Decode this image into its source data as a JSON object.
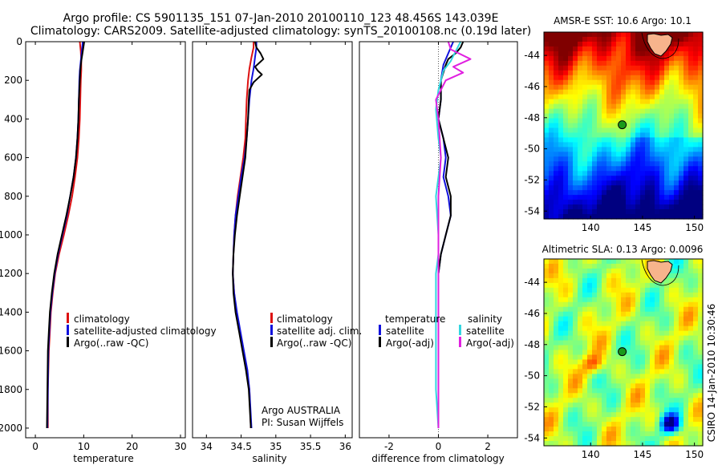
{
  "title": {
    "line1": "Argo profile: CS 5901135_151 07-Jan-2010 20100110_123 48.456S 143.039E",
    "line2": "Climatology: CARS2009. Satellite-adjusted climatology: synTS_20100108.nc (0.19d later)"
  },
  "colors": {
    "climatology": "#dd1111",
    "satellite": "#1111dd",
    "argo": "#000000",
    "satellite_salinity": "#33d6e0",
    "argo_adj_salinity": "#e020e0"
  },
  "chart_data": [
    {
      "type": "line",
      "name": "temperature-profile",
      "xlabel": "temperature",
      "ylabel": "",
      "xlim": [
        -2,
        31
      ],
      "ylim": [
        2050,
        0
      ],
      "xticks": [
        "0",
        "10",
        "20",
        "30"
      ],
      "xtick_values": [
        0,
        10,
        20,
        30
      ],
      "yticks": [
        "0",
        "200",
        "400",
        "600",
        "800",
        "1000",
        "1200",
        "1400",
        "1600",
        "1800",
        "2000"
      ],
      "ytick_values": [
        0,
        200,
        400,
        600,
        800,
        1000,
        1200,
        1400,
        1600,
        1800,
        2000
      ],
      "legend": [
        "climatology",
        "satellite-adjusted climatology",
        "Argo(..raw -QC)"
      ],
      "legend_colors": [
        "#dd1111",
        "#1111dd",
        "#000000"
      ],
      "series": [
        {
          "name": "climatology",
          "color": "#dd1111",
          "x": [
            9.2,
            9.4,
            9.5,
            9.5,
            9.4,
            9.3,
            9.2,
            9.0,
            8.7,
            8.2,
            7.6,
            6.8,
            5.9,
            4.9,
            4.1,
            3.6,
            3.2,
            3.0,
            2.8,
            2.6,
            2.6
          ],
          "y": [
            0,
            50,
            100,
            150,
            200,
            300,
            400,
            500,
            600,
            700,
            800,
            900,
            1000,
            1100,
            1200,
            1300,
            1400,
            1500,
            1600,
            1800,
            2000
          ]
        },
        {
          "name": "satellite-adjusted climatology",
          "color": "#1111dd",
          "x": [
            9.8,
            9.6,
            9.4,
            9.2,
            9.1,
            9.0,
            8.9,
            8.7,
            8.4,
            7.9,
            7.2,
            6.5,
            5.6,
            4.7,
            4.0,
            3.5,
            3.1,
            2.9,
            2.7,
            2.6,
            2.5
          ],
          "y": [
            0,
            50,
            100,
            150,
            200,
            300,
            400,
            500,
            600,
            700,
            800,
            900,
            1000,
            1100,
            1200,
            1300,
            1400,
            1500,
            1600,
            1800,
            2000
          ]
        },
        {
          "name": "Argo(..raw -QC)",
          "color": "#000000",
          "x": [
            10.1,
            9.8,
            9.5,
            9.3,
            9.2,
            9.0,
            8.9,
            8.7,
            8.4,
            7.9,
            7.2,
            6.4,
            5.5,
            4.6,
            3.9,
            3.4,
            3.0,
            2.8,
            2.6,
            2.5,
            2.4
          ],
          "y": [
            0,
            50,
            100,
            150,
            200,
            300,
            400,
            500,
            600,
            700,
            800,
            900,
            1000,
            1100,
            1200,
            1300,
            1400,
            1500,
            1600,
            1800,
            2000
          ]
        }
      ]
    },
    {
      "type": "line",
      "name": "salinity-profile",
      "xlabel": "salinity",
      "xlim": [
        33.8,
        36.1
      ],
      "ylim": [
        2050,
        0
      ],
      "xticks": [
        "34",
        "34.5",
        "35",
        "35.5",
        "36"
      ],
      "xtick_values": [
        34,
        34.5,
        35,
        35.5,
        36
      ],
      "legend": [
        "climatology",
        "satellite adj. clim.",
        "Argo(..raw -QC)"
      ],
      "legend_colors": [
        "#dd1111",
        "#1111dd",
        "#000000"
      ],
      "annotation": [
        "Argo AUSTRALIA",
        "PI: Susan Wijffels"
      ],
      "series": [
        {
          "name": "climatology",
          "color": "#dd1111",
          "x": [
            34.68,
            34.68,
            34.65,
            34.62,
            34.6,
            34.58,
            34.57,
            34.56,
            34.53,
            34.49,
            34.45,
            34.42,
            34.4,
            34.39,
            34.38,
            34.4,
            34.43,
            34.48,
            34.53,
            34.58,
            34.62,
            34.64
          ],
          "y": [
            0,
            30,
            80,
            140,
            200,
            300,
            400,
            500,
            600,
            700,
            800,
            900,
            1000,
            1100,
            1200,
            1300,
            1400,
            1500,
            1600,
            1700,
            1800,
            2000
          ]
        },
        {
          "name": "satellite adj. clim.",
          "color": "#1111dd",
          "x": [
            34.72,
            34.72,
            34.7,
            34.68,
            34.65,
            34.62,
            34.6,
            34.58,
            34.55,
            34.5,
            34.46,
            34.42,
            34.4,
            34.39,
            34.38,
            34.4,
            34.44,
            34.49,
            34.54,
            34.59,
            34.62,
            34.65
          ],
          "y": [
            0,
            30,
            80,
            140,
            200,
            300,
            400,
            500,
            600,
            700,
            800,
            900,
            1000,
            1100,
            1200,
            1300,
            1400,
            1500,
            1600,
            1700,
            1800,
            2000
          ]
        },
        {
          "name": "Argo(..raw -QC)",
          "color": "#000000",
          "x": [
            34.7,
            34.72,
            34.78,
            34.82,
            34.76,
            34.7,
            34.74,
            34.8,
            34.74,
            34.68,
            34.62,
            34.61,
            34.6,
            34.58,
            34.56,
            34.52,
            34.48,
            34.44,
            34.41,
            34.39,
            34.38,
            34.39,
            34.42,
            34.47,
            34.52,
            34.57,
            34.61,
            34.64
          ],
          "y": [
            0,
            30,
            60,
            90,
            110,
            130,
            150,
            170,
            190,
            210,
            250,
            300,
            400,
            500,
            600,
            700,
            800,
            900,
            1000,
            1100,
            1200,
            1300,
            1400,
            1500,
            1600,
            1700,
            1800,
            2000
          ]
        }
      ]
    },
    {
      "type": "line",
      "name": "difference-profile",
      "xlabel": "difference from climatology",
      "xlim": [
        -3.2,
        3.2
      ],
      "ylim": [
        2050,
        0
      ],
      "xticks": [
        "-2",
        "0",
        "2"
      ],
      "xtick_values": [
        -2,
        0,
        2
      ],
      "legend_left_title": "temperature",
      "legend_right_title": "salinity",
      "legend_left": [
        "satellite",
        "Argo(-adj)"
      ],
      "legend_left_colors": [
        "#1111dd",
        "#000000"
      ],
      "legend_right": [
        "satellite",
        "Argo(-adj)"
      ],
      "legend_right_colors": [
        "#33d6e0",
        "#e020e0"
      ],
      "series": [
        {
          "name": "temperature satellite",
          "color": "#1111dd",
          "x": [
            0.6,
            0.4,
            0.2,
            0.1,
            0.1,
            0.0,
            0.2,
            0.3,
            0.2,
            0.4,
            0.5,
            0.3,
            0.1,
            0.0,
            0.0,
            0.0,
            0.0,
            0.0,
            0.0
          ],
          "y": [
            0,
            60,
            120,
            200,
            300,
            400,
            500,
            600,
            700,
            800,
            900,
            1000,
            1100,
            1200,
            1400,
            1600,
            1800,
            1900,
            2000
          ]
        },
        {
          "name": "temperature Argo(-adj)",
          "color": "#000000",
          "x": [
            1.0,
            0.9,
            0.7,
            0.4,
            0.3,
            0.1,
            0.1,
            0.0,
            0.2,
            0.4,
            0.3,
            0.5,
            0.5,
            0.3,
            0.1,
            0.0,
            0.0,
            0.0,
            0.0,
            0.0
          ],
          "y": [
            0,
            30,
            60,
            90,
            120,
            200,
            300,
            400,
            500,
            600,
            700,
            800,
            900,
            1000,
            1100,
            1200,
            1400,
            1600,
            1800,
            2000
          ]
        },
        {
          "name": "salinity satellite",
          "color": "#33d6e0",
          "x": [
            0.9,
            0.7,
            0.5,
            0.2,
            0.0,
            -0.1,
            0.0,
            0.1,
            0.0,
            -0.1,
            0.0,
            0.0,
            -0.1,
            -0.1,
            -0.1,
            -0.1,
            0.0
          ],
          "y": [
            0,
            50,
            100,
            150,
            250,
            350,
            500,
            600,
            700,
            800,
            1000,
            1100,
            1200,
            1400,
            1600,
            1800,
            2000
          ]
        },
        {
          "name": "salinity Argo(-adj)",
          "color": "#e020e0",
          "x": [
            0.4,
            0.5,
            1.3,
            0.6,
            1.0,
            0.3,
            -0.1,
            0.0,
            0.1,
            0.0,
            0.0,
            0.0,
            0.0,
            0.0,
            0.0,
            0.0,
            0.0,
            0.0
          ],
          "y": [
            0,
            40,
            90,
            130,
            160,
            200,
            300,
            400,
            600,
            800,
            1000,
            1200,
            1400,
            1500,
            1600,
            1800,
            1900,
            2000
          ]
        }
      ]
    },
    {
      "type": "heatmap",
      "name": "sst-map",
      "title": "AMSR-E SST: 10.6 Argo: 10.1",
      "xlim": [
        135.5,
        150.8
      ],
      "ylim": [
        -54.5,
        -42.5
      ],
      "xticks": [
        "140",
        "145",
        "150"
      ],
      "xtick_values": [
        140,
        145,
        150
      ],
      "yticks": [
        "-44",
        "-46",
        "-48",
        "-50",
        "-52",
        "-54"
      ],
      "ytick_values": [
        -44,
        -46,
        -48,
        -50,
        -52,
        -54
      ],
      "float_position": [
        143.039,
        -48.456
      ],
      "field_range_c": [
        5,
        16
      ]
    },
    {
      "type": "heatmap",
      "name": "sla-map",
      "title": "Altimetric SLA: 0.13 Argo: 0.0096",
      "xlim": [
        135.5,
        150.8
      ],
      "ylim": [
        -54.5,
        -42.5
      ],
      "xticks": [
        "140",
        "145",
        "150"
      ],
      "xtick_values": [
        140,
        145,
        150
      ],
      "yticks": [
        "-44",
        "-46",
        "-48",
        "-50",
        "-52",
        "-54"
      ],
      "ytick_values": [
        -44,
        -46,
        -48,
        -50,
        -52,
        -54
      ],
      "float_position": [
        143.039,
        -48.456
      ]
    }
  ],
  "side_label": "CSIRO 14-Jan-2010 10:30:46"
}
